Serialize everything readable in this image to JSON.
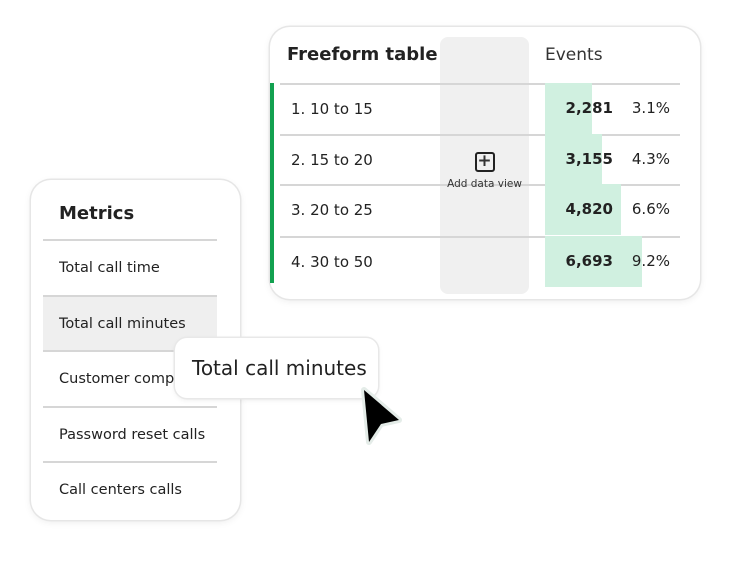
{
  "freeform_table": {
    "title": "Freeform table",
    "column_header": "Events",
    "add_data_view_label": "Add data view",
    "accent_color": "#12a150",
    "bar_color": "#d0f0e0",
    "rows": [
      {
        "label": "1.  10 to 15",
        "value": 2281,
        "value_text": "2,281",
        "percent": "3.1%"
      },
      {
        "label": "2.  15 to 20",
        "value": 3155,
        "value_text": "3,155",
        "percent": "4.3%"
      },
      {
        "label": "3.  20 to 25",
        "value": 4820,
        "value_text": "4,820",
        "percent": "6.6%"
      },
      {
        "label": "4. 30 to 50",
        "value": 6693,
        "value_text": "6,693",
        "percent": "9.2%"
      }
    ]
  },
  "metrics_panel": {
    "title": "Metrics",
    "items": [
      {
        "label": "Total call time"
      },
      {
        "label": "Total call  minutes",
        "selected": true
      },
      {
        "label": "Customer complaints"
      },
      {
        "label": "Password reset calls"
      },
      {
        "label": "Call centers calls"
      }
    ]
  },
  "drag_tooltip": {
    "label": "Total call minutes"
  },
  "cursor": {
    "icon": "arrow-cursor-icon"
  }
}
